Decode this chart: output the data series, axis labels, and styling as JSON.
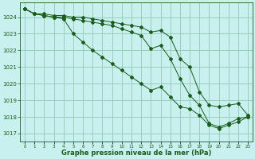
{
  "title": "Graphe pression niveau de la mer (hPa)",
  "background_color": "#c8f0ee",
  "grid_color": "#99ccbb",
  "line_color": "#1a5c1a",
  "xlim": [
    -0.5,
    23.5
  ],
  "ylim": [
    1016.5,
    1024.9
  ],
  "yticks": [
    1017,
    1018,
    1019,
    1020,
    1021,
    1022,
    1023,
    1024
  ],
  "xticks": [
    0,
    1,
    2,
    3,
    4,
    5,
    6,
    7,
    8,
    9,
    10,
    11,
    12,
    13,
    14,
    15,
    16,
    17,
    18,
    19,
    20,
    21,
    22,
    23
  ],
  "series1": [
    1024.5,
    1024.2,
    1024.2,
    1024.1,
    1024.1,
    1024.0,
    1024.0,
    1023.9,
    1023.8,
    1023.7,
    1023.6,
    1023.5,
    1023.4,
    1023.1,
    1023.2,
    1022.8,
    1021.5,
    1021.0,
    1019.5,
    1018.7,
    1018.6,
    1018.7,
    1018.8,
    1018.1
  ],
  "series2": [
    1024.5,
    1024.2,
    1024.1,
    1024.0,
    1024.0,
    1023.9,
    1023.8,
    1023.7,
    1023.6,
    1023.5,
    1023.3,
    1023.1,
    1022.9,
    1022.1,
    1022.3,
    1021.5,
    1020.3,
    1019.3,
    1018.7,
    1017.6,
    1017.4,
    1017.6,
    1017.9,
    1018.0
  ],
  "series3": [
    1024.5,
    1024.2,
    1024.1,
    1024.0,
    1023.9,
    1023.0,
    1022.5,
    1022.0,
    1021.6,
    1021.2,
    1020.8,
    1020.4,
    1020.0,
    1019.6,
    1019.8,
    1019.2,
    1018.6,
    1018.5,
    1018.1,
    1017.5,
    1017.3,
    1017.5,
    1017.7,
    1018.0
  ]
}
